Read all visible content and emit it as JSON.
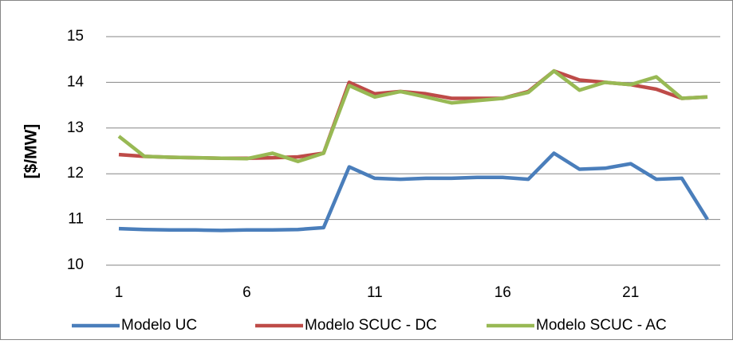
{
  "chart_data": {
    "type": "line",
    "y_label": "[$/MW]",
    "x": [
      1,
      2,
      3,
      4,
      5,
      6,
      7,
      8,
      9,
      10,
      11,
      12,
      13,
      14,
      15,
      16,
      17,
      18,
      19,
      20,
      21,
      22,
      23,
      24
    ],
    "xlim": [
      0.5,
      24.5
    ],
    "xticks": [
      1,
      6,
      11,
      16,
      21
    ],
    "ylim": [
      10,
      15
    ],
    "yticks": [
      10,
      11,
      12,
      13,
      14,
      15
    ],
    "grid": true,
    "legend": "bottom",
    "series": [
      {
        "name": "Modelo UC",
        "color": "#4a7ebb",
        "values": [
          10.8,
          10.78,
          10.77,
          10.77,
          10.76,
          10.77,
          10.77,
          10.78,
          10.82,
          12.15,
          11.9,
          11.88,
          11.9,
          11.9,
          11.92,
          11.92,
          11.88,
          12.45,
          12.1,
          12.12,
          12.22,
          11.88,
          11.9,
          11.0
        ]
      },
      {
        "name": "Modelo SCUC - DC",
        "color": "#be4b48",
        "values": [
          12.42,
          12.38,
          12.36,
          12.35,
          12.34,
          12.34,
          12.35,
          12.37,
          12.45,
          14.0,
          13.75,
          13.8,
          13.75,
          13.65,
          13.65,
          13.65,
          13.8,
          14.25,
          14.05,
          14.0,
          13.95,
          13.85,
          13.65,
          13.68
        ]
      },
      {
        "name": "Modelo SCUC - AC",
        "color": "#98b954",
        "values": [
          12.82,
          12.38,
          12.36,
          12.35,
          12.34,
          12.33,
          12.45,
          12.27,
          12.45,
          13.93,
          13.68,
          13.8,
          13.68,
          13.55,
          13.6,
          13.65,
          13.78,
          14.25,
          13.83,
          14.0,
          13.95,
          14.12,
          13.65,
          13.68
        ]
      }
    ]
  }
}
